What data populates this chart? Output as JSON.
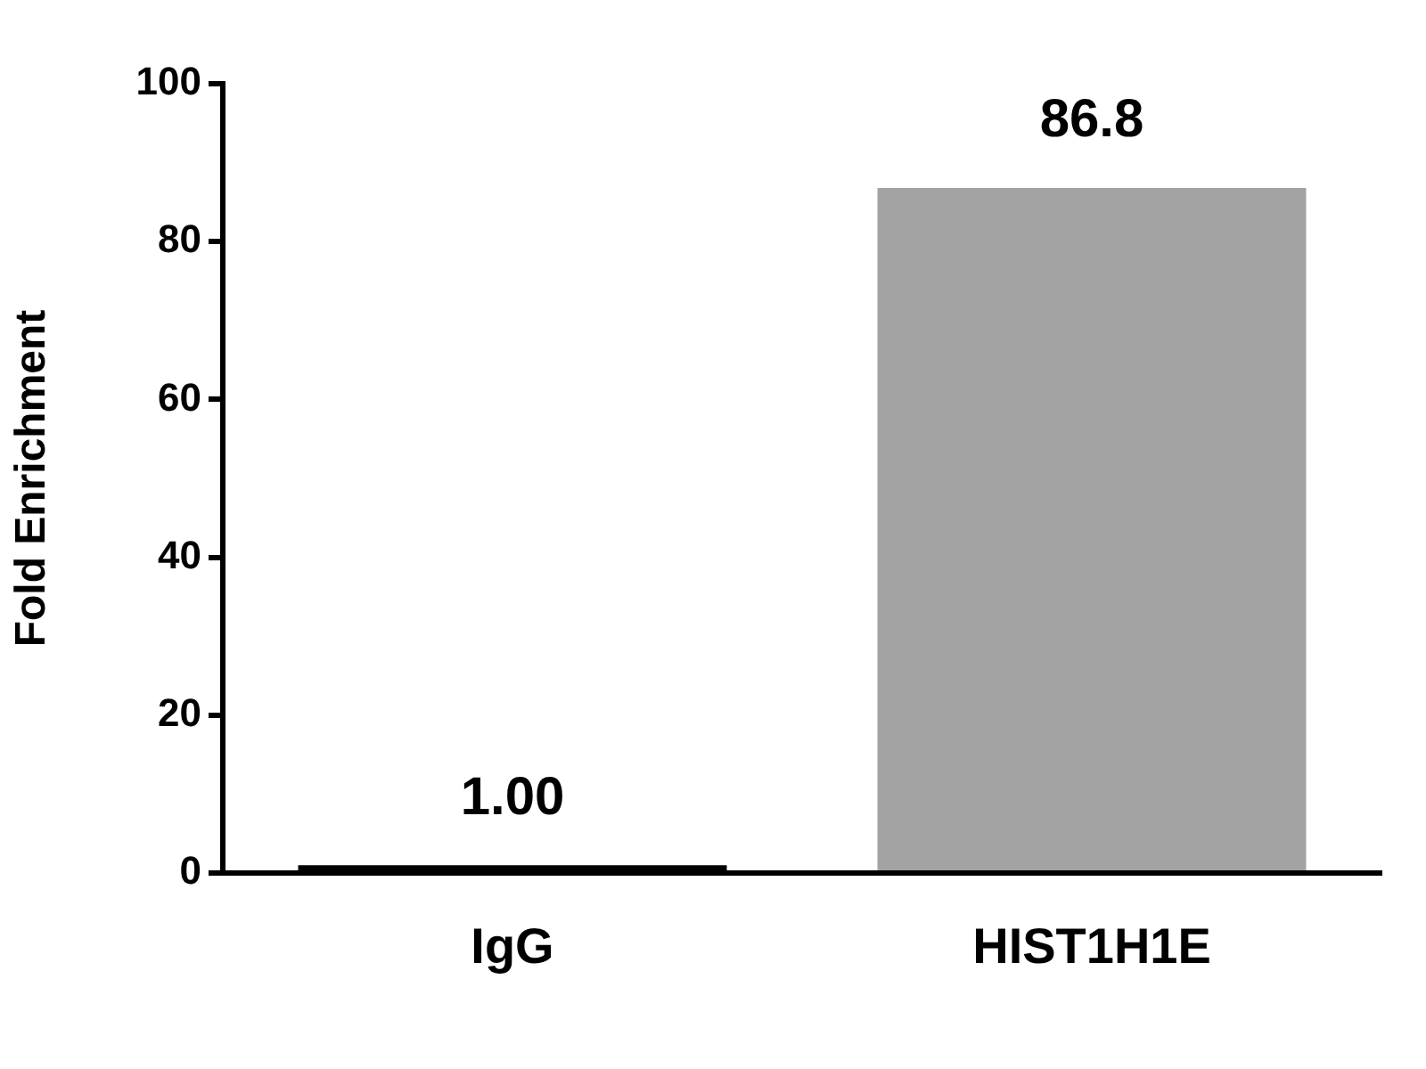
{
  "chart_data": {
    "type": "bar",
    "ylabel": "Fold Enrichment",
    "categories": [
      "IgG",
      "HIST1H1E"
    ],
    "values": [
      1.0,
      86.8
    ],
    "colors": [
      "#000000",
      "#a3a3a3"
    ],
    "value_labels": [
      "1.00",
      "86.8"
    ],
    "ylim": [
      0,
      100
    ],
    "yticks": [
      0,
      20,
      40,
      60,
      80,
      100
    ],
    "grid": false,
    "legend": false
  }
}
